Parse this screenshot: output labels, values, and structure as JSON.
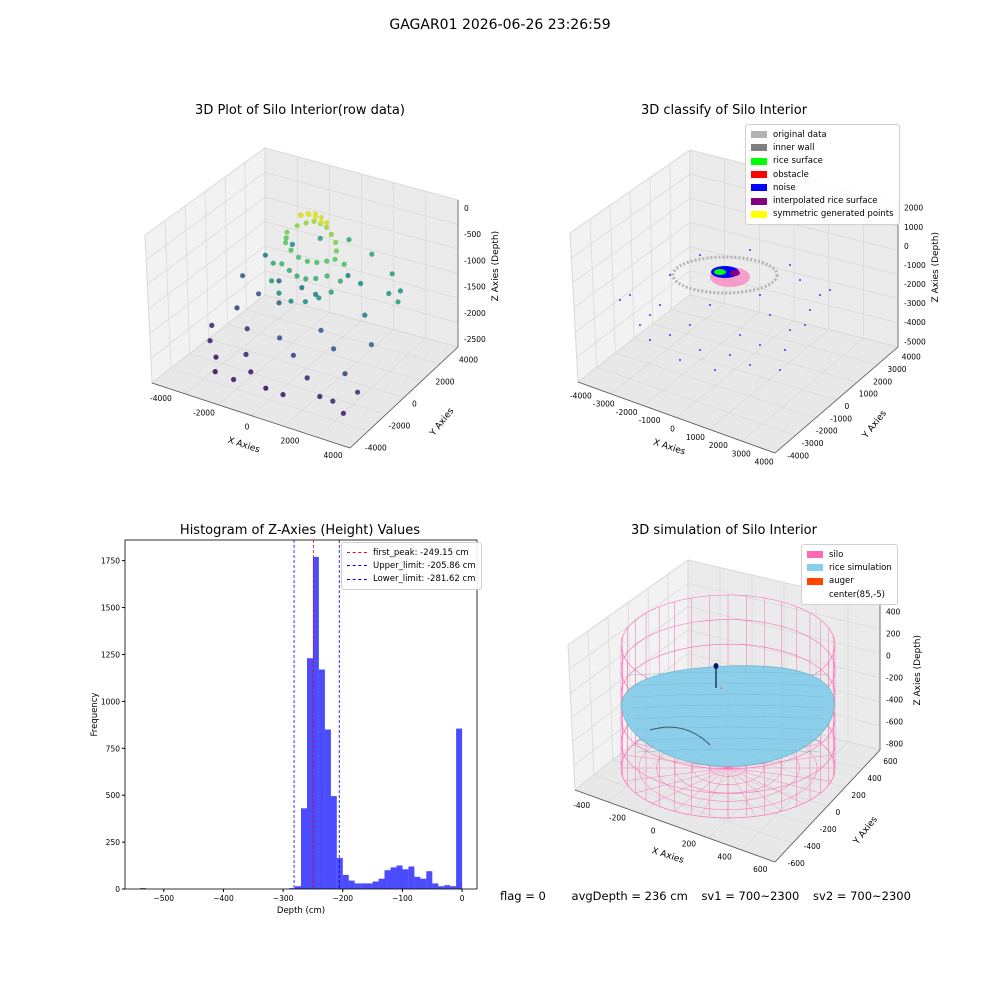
{
  "figure": {
    "suptitle": "GAGAR01 2026-06-26 23:26:59"
  },
  "footer": {
    "flag": "flag = 0",
    "avg_depth": "avgDepth = 236 cm",
    "sv1": "sv1 = 700~2300",
    "sv2": "sv2 = 700~2300"
  },
  "chart_data": [
    {
      "type": "scatter",
      "title": "3D Plot of Silo Interior(row data)",
      "xlabel": "X Axies",
      "ylabel": "Y Axies",
      "zlabel": "Z Axies (Depth)",
      "x_ticks": [
        "-4000",
        "-2000",
        "0",
        "2000",
        "4000"
      ],
      "y_ticks": [
        "-4000",
        "-2000",
        "0",
        "2000",
        "4000"
      ],
      "z_ticks": [
        "0",
        "-500",
        "-1000",
        "-1500",
        "-2000",
        "-2500"
      ],
      "xlim": [
        -4500,
        4500
      ],
      "ylim": [
        -4500,
        4500
      ],
      "zlim": [
        -2700,
        100
      ],
      "colormap": "viridis",
      "points": [
        {
          "x": -3800,
          "y": -800,
          "z": -2300
        },
        {
          "x": -3500,
          "y": -1500,
          "z": -2400
        },
        {
          "x": -3200,
          "y": 200,
          "z": -2100
        },
        {
          "x": -2900,
          "y": -2100,
          "z": -2500
        },
        {
          "x": -2600,
          "y": 900,
          "z": -1900
        },
        {
          "x": -2300,
          "y": -600,
          "z": -2200
        },
        {
          "x": -2000,
          "y": 1500,
          "z": -1700
        },
        {
          "x": -1700,
          "y": -1800,
          "z": -2350
        },
        {
          "x": -1400,
          "y": 400,
          "z": -1800
        },
        {
          "x": -1100,
          "y": -2500,
          "z": -2450
        },
        {
          "x": -800,
          "y": 1200,
          "z": -1600
        },
        {
          "x": -500,
          "y": -1200,
          "z": -2000
        },
        {
          "x": -200,
          "y": -2900,
          "z": -2550
        },
        {
          "x": 100,
          "y": 700,
          "z": -1500
        },
        {
          "x": 400,
          "y": -1700,
          "z": -2100
        },
        {
          "x": 700,
          "y": 2300,
          "z": -1400
        },
        {
          "x": 1000,
          "y": -500,
          "z": -1800
        },
        {
          "x": 1300,
          "y": -2200,
          "z": -2300
        },
        {
          "x": 1600,
          "y": 1700,
          "z": -1300
        },
        {
          "x": 1900,
          "y": -1100,
          "z": -1900
        },
        {
          "x": 2200,
          "y": -2800,
          "z": -2400
        },
        {
          "x": 2500,
          "y": 400,
          "z": -1500
        },
        {
          "x": 2800,
          "y": -1800,
          "z": -2100
        },
        {
          "x": 3100,
          "y": 1300,
          "z": -1200
        },
        {
          "x": 3400,
          "y": -700,
          "z": -1700
        },
        {
          "x": 3700,
          "y": -2400,
          "z": -2200
        },
        {
          "x": 3900,
          "y": 600,
          "z": -1100
        },
        {
          "x": -3000,
          "y": 2200,
          "z": -1500
        },
        {
          "x": -2100,
          "y": 2800,
          "z": -1300
        },
        {
          "x": -1000,
          "y": 3100,
          "z": -1100
        },
        {
          "x": 200,
          "y": 3300,
          "z": -1000
        },
        {
          "x": 1400,
          "y": 3000,
          "z": -1050
        },
        {
          "x": 2600,
          "y": 2500,
          "z": -1150
        },
        {
          "x": 3300,
          "y": 1900,
          "z": -1250
        },
        {
          "x": -3600,
          "y": 1400,
          "z": -1800
        },
        {
          "x": -1500,
          "y": -3200,
          "z": -2500
        },
        {
          "x": 800,
          "y": -3300,
          "z": -2450
        },
        {
          "x": 2900,
          "y": -3000,
          "z": -2350
        },
        {
          "x": -2500,
          "y": -2900,
          "z": -2550
        },
        {
          "x": 3600,
          "y": -3400,
          "z": -2400
        },
        {
          "x": -1200,
          "y": 700,
          "z": -500
        },
        {
          "x": -900,
          "y": 1000,
          "z": -400
        },
        {
          "x": -600,
          "y": 1200,
          "z": -350
        },
        {
          "x": -300,
          "y": 1300,
          "z": -300
        },
        {
          "x": 0,
          "y": 1300,
          "z": -300
        },
        {
          "x": 300,
          "y": 1250,
          "z": -320
        },
        {
          "x": 600,
          "y": 1100,
          "z": -380
        },
        {
          "x": 900,
          "y": 900,
          "z": -450
        },
        {
          "x": 1100,
          "y": 600,
          "z": -520
        },
        {
          "x": 1200,
          "y": 300,
          "z": -600
        },
        {
          "x": -1100,
          "y": 400,
          "z": -620
        },
        {
          "x": -800,
          "y": 300,
          "z": -700
        },
        {
          "x": -400,
          "y": 200,
          "z": -760
        },
        {
          "x": 0,
          "y": 200,
          "z": -780
        },
        {
          "x": 400,
          "y": 250,
          "z": -760
        },
        {
          "x": 800,
          "y": 350,
          "z": -700
        },
        {
          "x": -1000,
          "y": -100,
          "z": -900
        },
        {
          "x": -600,
          "y": -200,
          "z": -950
        },
        {
          "x": -200,
          "y": -300,
          "z": -980
        },
        {
          "x": 200,
          "y": -300,
          "z": -980
        },
        {
          "x": 600,
          "y": -200,
          "z": -940
        },
        {
          "x": 1000,
          "y": 0,
          "z": -880
        },
        {
          "x": -700,
          "y": 900,
          "z": -150
        },
        {
          "x": -400,
          "y": 1000,
          "z": -100
        },
        {
          "x": -100,
          "y": 1050,
          "z": -80
        },
        {
          "x": 200,
          "y": 1000,
          "z": -90
        },
        {
          "x": 500,
          "y": 900,
          "z": -130
        },
        {
          "x": -500,
          "y": 600,
          "z": -60
        },
        {
          "x": -200,
          "y": 700,
          "z": -30
        },
        {
          "x": 100,
          "y": 700,
          "z": -40
        },
        {
          "x": 400,
          "y": 600,
          "z": -70
        },
        {
          "x": -1300,
          "y": -400,
          "z": -1200
        },
        {
          "x": -800,
          "y": -700,
          "z": -1300
        },
        {
          "x": -200,
          "y": -800,
          "z": -1350
        },
        {
          "x": 400,
          "y": -700,
          "z": -1300
        },
        {
          "x": 900,
          "y": -500,
          "z": -1200
        },
        {
          "x": 1300,
          "y": -200,
          "z": -1100
        },
        {
          "x": 1500,
          "y": 200,
          "z": -950
        },
        {
          "x": 1400,
          "y": 700,
          "z": -750
        },
        {
          "x": -1400,
          "y": 1000,
          "z": -700
        },
        {
          "x": -1500,
          "y": 100,
          "z": -1000
        }
      ]
    },
    {
      "type": "scatter",
      "title": "3D classify of Silo Interior",
      "xlabel": "X Axies",
      "ylabel": "Y Axies",
      "zlabel": "Z Axies (Depth)",
      "x_ticks": [
        "-4000",
        "-3000",
        "-2000",
        "-1000",
        "0",
        "1000",
        "2000",
        "3000",
        "4000"
      ],
      "y_ticks": [
        "-4000",
        "-3000",
        "-2000",
        "-1000",
        "0",
        "1000",
        "2000",
        "3000",
        "4000"
      ],
      "z_ticks": [
        "2000",
        "1000",
        "0",
        "-1000",
        "-2000",
        "-3000",
        "-4000",
        "-5000"
      ],
      "xlim": [
        -4200,
        4200
      ],
      "ylim": [
        -4200,
        4200
      ],
      "zlim": [
        -5500,
        3000
      ],
      "legend": [
        {
          "name": "original data",
          "color": "#b3b3b3"
        },
        {
          "name": "inner wall",
          "color": "#808080"
        },
        {
          "name": "rice surface",
          "color": "#00ff00"
        },
        {
          "name": "obstacle",
          "color": "#ff0000"
        },
        {
          "name": "noise",
          "color": "#0000ff"
        },
        {
          "name": "interpolated rice surface",
          "color": "#800080"
        },
        {
          "name": "symmetric generated points",
          "color": "#ffff00"
        }
      ],
      "legend_position": "upper right"
    },
    {
      "type": "bar",
      "title": "Histogram of Z-Axies (Height) Values",
      "xlabel": "Depth (cm)",
      "ylabel": "Frequency",
      "x_ticks": [
        -500,
        -400,
        -300,
        -200,
        -100,
        0
      ],
      "y_ticks": [
        0,
        250,
        500,
        750,
        1000,
        1250,
        1500,
        1750
      ],
      "xlim": [
        -565,
        25
      ],
      "ylim": [
        0,
        1860
      ],
      "bar_color": "#0000ff",
      "bin_width": 10,
      "bins": [
        {
          "x": -540,
          "v": 5
        },
        {
          "x": -290,
          "v": 5
        },
        {
          "x": -280,
          "v": 15
        },
        {
          "x": -270,
          "v": 430
        },
        {
          "x": -260,
          "v": 1230
        },
        {
          "x": -250,
          "v": 1770
        },
        {
          "x": -240,
          "v": 1170
        },
        {
          "x": -230,
          "v": 850
        },
        {
          "x": -220,
          "v": 495
        },
        {
          "x": -210,
          "v": 165
        },
        {
          "x": -200,
          "v": 75
        },
        {
          "x": -190,
          "v": 45
        },
        {
          "x": -180,
          "v": 30
        },
        {
          "x": -170,
          "v": 30
        },
        {
          "x": -160,
          "v": 30
        },
        {
          "x": -150,
          "v": 40
        },
        {
          "x": -140,
          "v": 55
        },
        {
          "x": -130,
          "v": 100
        },
        {
          "x": -120,
          "v": 115
        },
        {
          "x": -110,
          "v": 125
        },
        {
          "x": -100,
          "v": 105
        },
        {
          "x": -90,
          "v": 120
        },
        {
          "x": -80,
          "v": 65
        },
        {
          "x": -70,
          "v": 55
        },
        {
          "x": -60,
          "v": 95
        },
        {
          "x": -50,
          "v": 30
        },
        {
          "x": -40,
          "v": 15
        },
        {
          "x": -30,
          "v": 20
        },
        {
          "x": -20,
          "v": 15
        },
        {
          "x": -10,
          "v": 855
        }
      ],
      "vlines": [
        {
          "value": -249.15,
          "color": "#ff0000",
          "label": "first_peak: -249.15 cm"
        },
        {
          "value": -205.86,
          "color": "#0000ff",
          "label": "Upper_limit: -205.86 cm"
        },
        {
          "value": -281.62,
          "color": "#0000ff",
          "label": "Lower_limit: -281.62 cm"
        }
      ],
      "legend_position": "upper right"
    },
    {
      "type": "surface",
      "title": "3D simulation of Silo Interior",
      "xlabel": "X Axies",
      "ylabel": "Y Axies",
      "zlabel": "Z Axies (Depth)",
      "x_ticks": [
        "-400",
        "-200",
        "0",
        "200",
        "400",
        "600"
      ],
      "y_ticks": [
        "-600",
        "-400",
        "-200",
        "0",
        "200",
        "400",
        "600"
      ],
      "z_ticks": [
        "400",
        "200",
        "0",
        "-200",
        "-400",
        "-600",
        "-800"
      ],
      "xlim": [
        -550,
        750
      ],
      "ylim": [
        -750,
        750
      ],
      "zlim": [
        -900,
        450
      ],
      "legend": [
        {
          "name": "silo",
          "color": "#ff69b4"
        },
        {
          "name": "rice simulation",
          "color": "#87ceeb"
        },
        {
          "name": "auger",
          "color": "#ff4500"
        },
        {
          "name": "center(85,-5)",
          "color": ""
        }
      ],
      "legend_position": "upper right"
    }
  ]
}
